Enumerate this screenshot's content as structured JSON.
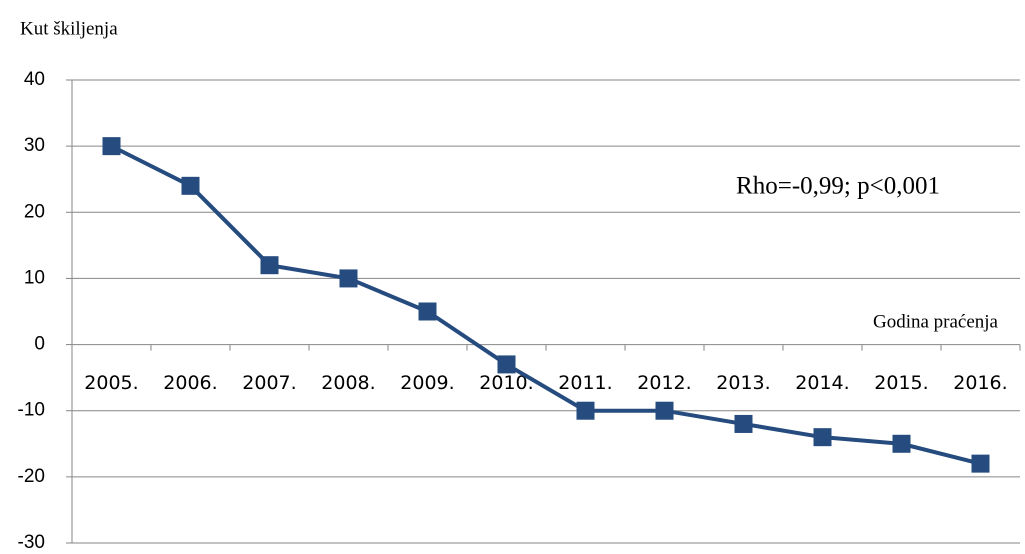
{
  "chart_data": {
    "type": "line",
    "y_label": "Kut škiljenja",
    "x_label": "Godina praćenja",
    "annotation": "Rho=-0,99; p<0,001",
    "categories": [
      "2005.",
      "2006.",
      "2007.",
      "2008.",
      "2009.",
      "2010.",
      "2011.",
      "2012.",
      "2013.",
      "2014.",
      "2015.",
      "2016."
    ],
    "values": [
      30,
      24,
      12,
      10,
      5,
      -3,
      -10,
      -10,
      -12,
      -14,
      -15,
      -18
    ],
    "color": "#254b7f",
    "ylim": [
      -30,
      40
    ],
    "yticks": [
      -30,
      -20,
      -10,
      0,
      10,
      20,
      30,
      40
    ],
    "grid": true
  }
}
